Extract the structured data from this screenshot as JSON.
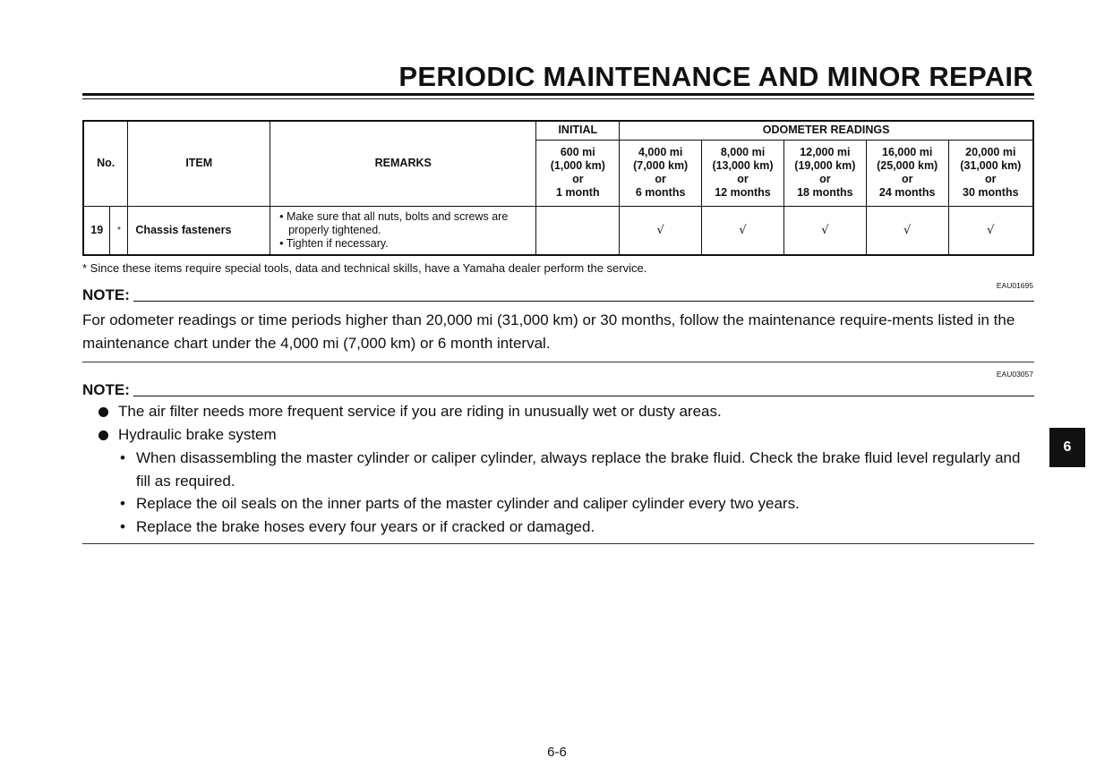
{
  "header": {
    "title": "PERIODIC MAINTENANCE AND MINOR REPAIR"
  },
  "table": {
    "headers": {
      "no": "No.",
      "item": "ITEM",
      "remarks": "REMARKS",
      "initial": "INITIAL",
      "odometer": "ODOMETER READINGS"
    },
    "intervals": [
      {
        "mi": "600 mi",
        "km": "(1,000 km)",
        "or": "or",
        "time": "1 month"
      },
      {
        "mi": "4,000 mi",
        "km": "(7,000 km)",
        "or": "or",
        "time": "6 months"
      },
      {
        "mi": "8,000 mi",
        "km": "(13,000 km)",
        "or": "or",
        "time": "12 months"
      },
      {
        "mi": "12,000 mi",
        "km": "(19,000 km)",
        "or": "or",
        "time": "18 months"
      },
      {
        "mi": "16,000 mi",
        "km": "(25,000 km)",
        "or": "or",
        "time": "24 months"
      },
      {
        "mi": "20,000 mi",
        "km": "(31,000 km)",
        "or": "or",
        "time": "30 months"
      }
    ],
    "rows": [
      {
        "no": "19",
        "mark": "*",
        "item": "Chassis fasteners",
        "remarks": [
          "• Make sure that all nuts, bolts and screws are properly tightened.",
          "• Tighten if necessary."
        ],
        "checks": [
          "",
          "√",
          "√",
          "√",
          "√",
          "√"
        ]
      }
    ]
  },
  "footnote": "* Since these items require special tools, data and technical skills, have a Yamaha dealer perform the service.",
  "note1": {
    "code": "EAU01695",
    "label": "NOTE:",
    "text": "For odometer readings or time periods higher than 20,000 mi (31,000 km) or 30 months, follow the maintenance require-ments listed in the maintenance chart under the 4,000 mi (7,000 km) or 6 month interval."
  },
  "note2": {
    "code": "EAU03057",
    "label": "NOTE:",
    "bullets": [
      "The air filter needs more frequent service if you are riding in unusually wet or dusty areas.",
      "Hydraulic brake system"
    ],
    "sub_bullets": [
      "When disassembling the master cylinder or caliper cylinder, always replace the brake fluid. Check the brake fluid level regularly and fill as required.",
      "Replace the oil seals on the inner parts of the master cylinder and caliper cylinder every two years.",
      "Replace the brake hoses every four years or if cracked or damaged."
    ]
  },
  "chapter_tab": "6",
  "page_number": "6-6"
}
